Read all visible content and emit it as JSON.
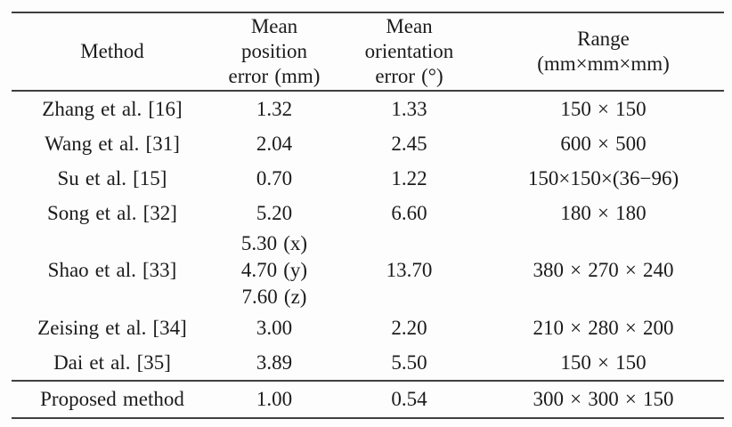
{
  "page": {
    "background_color": "#fdfdfd",
    "text_color": "#1b1b1b",
    "rule_color": "#3f3f3f"
  },
  "table": {
    "header": {
      "columns": [
        {
          "id": "method",
          "lines": [
            "Method"
          ]
        },
        {
          "id": "mean-position-error",
          "lines": [
            "Mean",
            "position",
            "error (mm)"
          ]
        },
        {
          "id": "mean-orientation-error",
          "lines": [
            "Mean",
            "orientation",
            "error (°)"
          ]
        },
        {
          "id": "range",
          "lines": [
            "Range",
            "(mm×mm×mm)"
          ]
        }
      ]
    },
    "rows": [
      {
        "method": "Zhang et al. [16]",
        "position_error": [
          "1.32"
        ],
        "orientation_error": "1.33",
        "range": "150 × 150"
      },
      {
        "method": "Wang et al. [31]",
        "position_error": [
          "2.04"
        ],
        "orientation_error": "2.45",
        "range": "600 × 500"
      },
      {
        "method": "Su et al. [15]",
        "position_error": [
          "0.70"
        ],
        "orientation_error": "1.22",
        "range": "150×150×(36−96)"
      },
      {
        "method": "Song et al. [32]",
        "position_error": [
          "5.20"
        ],
        "orientation_error": "6.60",
        "range": "180 × 180"
      },
      {
        "method": "Shao et al. [33]",
        "position_error": [
          "5.30 (x)",
          "4.70 (y)",
          "7.60 (z)"
        ],
        "orientation_error": "13.70",
        "range": "380 × 270 × 240"
      },
      {
        "method": "Zeising et al. [34]",
        "position_error": [
          "3.00"
        ],
        "orientation_error": "2.20",
        "range": "210 × 280 × 200"
      },
      {
        "method": "Dai et al. [35]",
        "position_error": [
          "3.89"
        ],
        "orientation_error": "5.50",
        "range": "150 × 150"
      }
    ],
    "footer_row": {
      "method": "Proposed method",
      "position_error": [
        "1.00"
      ],
      "orientation_error": "0.54",
      "range": "300 × 300 × 150"
    }
  },
  "chart_data": {
    "type": "table",
    "columns": [
      "Method",
      "Mean position error (mm)",
      "Mean orientation error (°)",
      "Range (mm×mm×mm)"
    ],
    "rows": [
      [
        "Zhang et al. [16]",
        "1.32",
        "1.33",
        "150 × 150"
      ],
      [
        "Wang et al. [31]",
        "2.04",
        "2.45",
        "600 × 500"
      ],
      [
        "Su et al. [15]",
        "0.70",
        "1.22",
        "150×150×(36−96)"
      ],
      [
        "Song et al. [32]",
        "5.20",
        "6.60",
        "180 × 180"
      ],
      [
        "Shao et al. [33]",
        "5.30 (x); 4.70 (y); 7.60 (z)",
        "13.70",
        "380 × 270 × 240"
      ],
      [
        "Zeising et al. [34]",
        "3.00",
        "2.20",
        "210 × 280 × 200"
      ],
      [
        "Dai et al. [35]",
        "3.89",
        "5.50",
        "150 × 150"
      ],
      [
        "Proposed method",
        "1.00",
        "0.54",
        "300 × 300 × 150"
      ]
    ]
  }
}
